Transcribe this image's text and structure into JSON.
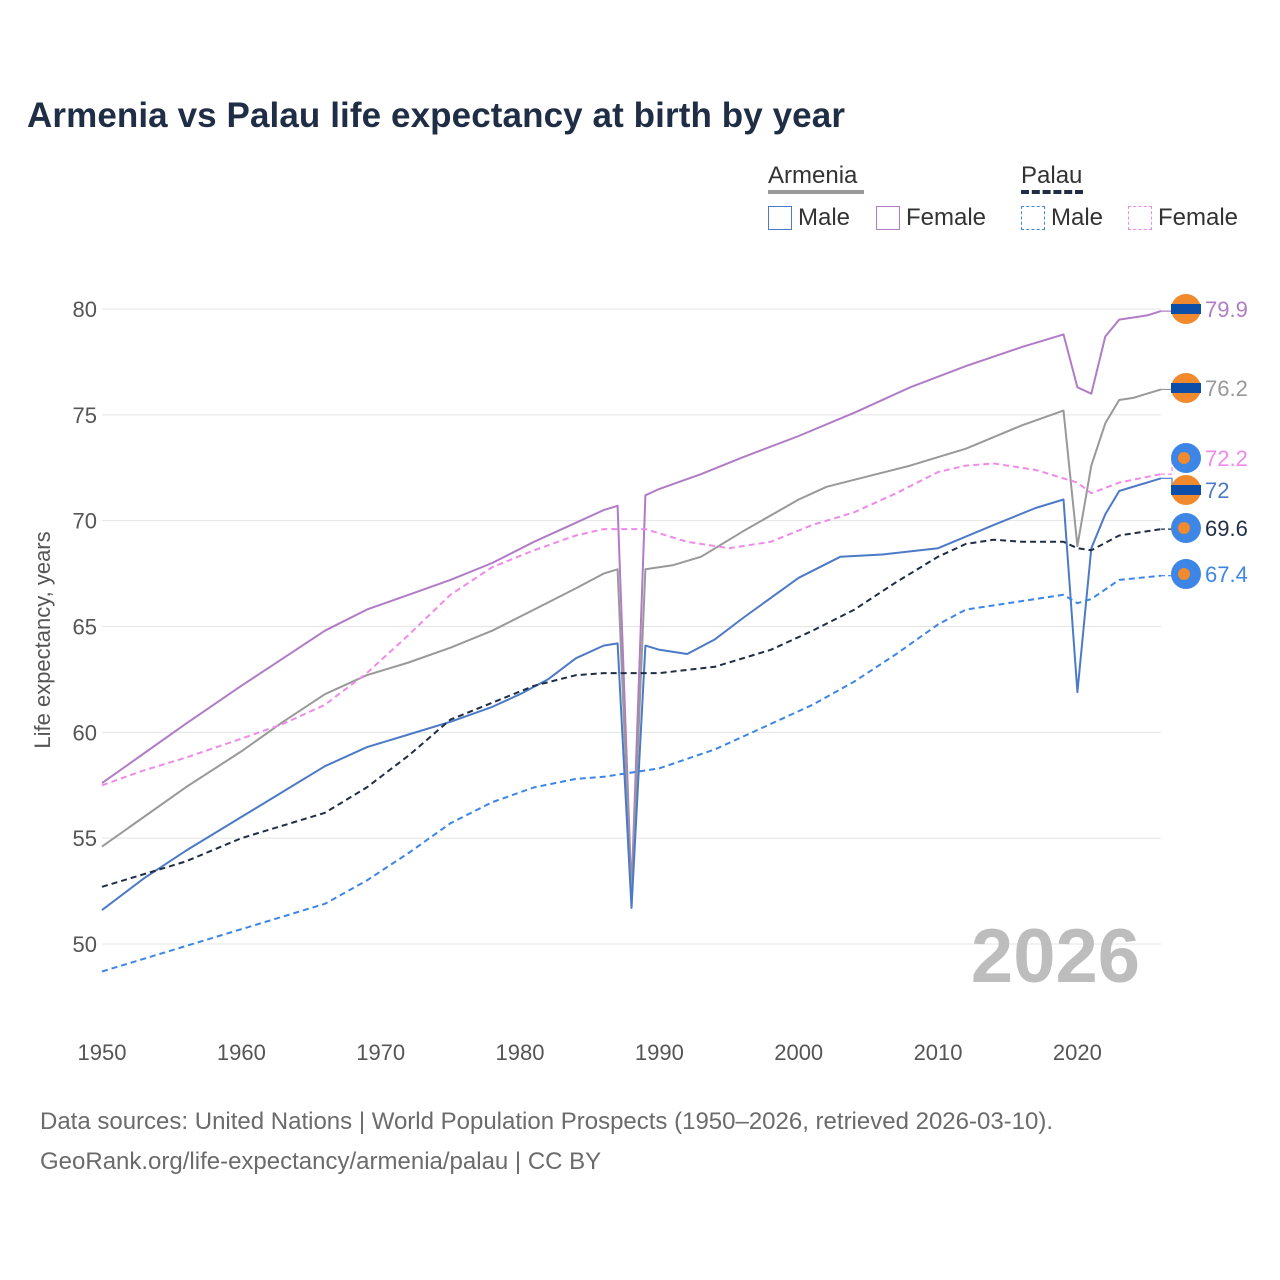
{
  "title": "Armenia vs Palau life expectancy at birth by year",
  "legend": {
    "groups": [
      {
        "name": "Armenia",
        "line_color": "#999999",
        "line_style": "solid",
        "items": [
          {
            "label": "Male",
            "color": "#4c7ac6",
            "style": "solid"
          },
          {
            "label": "Female",
            "color": "#b07cc6",
            "style": "solid"
          }
        ]
      },
      {
        "name": "Palau",
        "line_color": "#1f2d45",
        "line_style": "dashed",
        "items": [
          {
            "label": "Male",
            "color": "#3d86e6",
            "style": "dashed"
          },
          {
            "label": "Female",
            "color": "#f08ae8",
            "style": "dashed"
          }
        ]
      }
    ]
  },
  "year_watermark": "2026",
  "footer": {
    "line1": "Data sources: United Nations | World Population Prospects (1950–2026, retrieved 2026-03-10).",
    "line2": "GeoRank.org/life-expectancy/armenia/palau | CC BY"
  },
  "chart_data": {
    "type": "line",
    "title": "Armenia vs Palau life expectancy at birth by year",
    "xlabel": "",
    "ylabel": "Life expectancy, years",
    "xlim": [
      1950,
      2026
    ],
    "ylim": [
      47,
      82
    ],
    "x_ticks": [
      1950,
      1960,
      1970,
      1980,
      1990,
      2000,
      2010,
      2020
    ],
    "y_ticks": [
      50,
      55,
      60,
      65,
      70,
      75,
      80
    ],
    "grid": true,
    "series": [
      {
        "name": "Armenia Female",
        "color": "#b07cc6",
        "style": "solid",
        "end_label": "79.9",
        "points": [
          [
            1950,
            57.6
          ],
          [
            1953,
            59.0
          ],
          [
            1956,
            60.4
          ],
          [
            1960,
            62.2
          ],
          [
            1963,
            63.5
          ],
          [
            1966,
            64.8
          ],
          [
            1969,
            65.8
          ],
          [
            1972,
            66.5
          ],
          [
            1975,
            67.2
          ],
          [
            1978,
            68.0
          ],
          [
            1981,
            69.0
          ],
          [
            1984,
            69.9
          ],
          [
            1986,
            70.5
          ],
          [
            1987,
            70.7
          ],
          [
            1988,
            52.5
          ],
          [
            1989,
            71.2
          ],
          [
            1990,
            71.5
          ],
          [
            1993,
            72.2
          ],
          [
            1996,
            73.0
          ],
          [
            2000,
            74.0
          ],
          [
            2004,
            75.1
          ],
          [
            2008,
            76.3
          ],
          [
            2012,
            77.3
          ],
          [
            2016,
            78.2
          ],
          [
            2019,
            78.8
          ],
          [
            2020,
            76.3
          ],
          [
            2021,
            76.0
          ],
          [
            2022,
            78.7
          ],
          [
            2023,
            79.5
          ],
          [
            2025,
            79.7
          ],
          [
            2026,
            79.9
          ]
        ]
      },
      {
        "name": "Armenia Total",
        "color": "#999999",
        "style": "solid",
        "end_label": "76.2",
        "points": [
          [
            1950,
            54.6
          ],
          [
            1953,
            56.0
          ],
          [
            1956,
            57.4
          ],
          [
            1960,
            59.1
          ],
          [
            1963,
            60.5
          ],
          [
            1966,
            61.8
          ],
          [
            1969,
            62.7
          ],
          [
            1972,
            63.3
          ],
          [
            1975,
            64.0
          ],
          [
            1978,
            64.8
          ],
          [
            1981,
            65.8
          ],
          [
            1984,
            66.8
          ],
          [
            1986,
            67.5
          ],
          [
            1987,
            67.7
          ],
          [
            1988,
            52.1
          ],
          [
            1989,
            67.7
          ],
          [
            1991,
            67.9
          ],
          [
            1993,
            68.3
          ],
          [
            1996,
            69.5
          ],
          [
            2000,
            71.0
          ],
          [
            2002,
            71.6
          ],
          [
            2005,
            72.1
          ],
          [
            2008,
            72.6
          ],
          [
            2012,
            73.4
          ],
          [
            2016,
            74.5
          ],
          [
            2019,
            75.2
          ],
          [
            2020,
            68.8
          ],
          [
            2021,
            72.6
          ],
          [
            2022,
            74.6
          ],
          [
            2023,
            75.7
          ],
          [
            2024,
            75.8
          ],
          [
            2026,
            76.2
          ]
        ]
      },
      {
        "name": "Armenia Male",
        "color": "#4c7ac6",
        "style": "solid",
        "end_label": "72",
        "points": [
          [
            1950,
            51.6
          ],
          [
            1953,
            53.1
          ],
          [
            1956,
            54.4
          ],
          [
            1960,
            56.0
          ],
          [
            1963,
            57.2
          ],
          [
            1966,
            58.4
          ],
          [
            1969,
            59.3
          ],
          [
            1972,
            59.9
          ],
          [
            1975,
            60.5
          ],
          [
            1978,
            61.2
          ],
          [
            1980,
            61.8
          ],
          [
            1982,
            62.5
          ],
          [
            1984,
            63.5
          ],
          [
            1986,
            64.1
          ],
          [
            1987,
            64.2
          ],
          [
            1988,
            51.7
          ],
          [
            1989,
            64.1
          ],
          [
            1990,
            63.9
          ],
          [
            1992,
            63.7
          ],
          [
            1994,
            64.4
          ],
          [
            1996,
            65.4
          ],
          [
            2000,
            67.3
          ],
          [
            2003,
            68.3
          ],
          [
            2006,
            68.4
          ],
          [
            2010,
            68.7
          ],
          [
            2014,
            69.8
          ],
          [
            2017,
            70.6
          ],
          [
            2019,
            71.0
          ],
          [
            2020,
            61.9
          ],
          [
            2021,
            68.7
          ],
          [
            2022,
            70.3
          ],
          [
            2023,
            71.4
          ],
          [
            2026,
            72.0
          ]
        ]
      },
      {
        "name": "Palau Female",
        "color": "#f08ae8",
        "style": "dashed",
        "end_label": "72.2",
        "points": [
          [
            1950,
            57.5
          ],
          [
            1953,
            58.2
          ],
          [
            1956,
            58.8
          ],
          [
            1960,
            59.7
          ],
          [
            1963,
            60.4
          ],
          [
            1966,
            61.3
          ],
          [
            1969,
            62.8
          ],
          [
            1972,
            64.6
          ],
          [
            1975,
            66.5
          ],
          [
            1978,
            67.8
          ],
          [
            1981,
            68.6
          ],
          [
            1984,
            69.3
          ],
          [
            1986,
            69.6
          ],
          [
            1989,
            69.6
          ],
          [
            1992,
            69.0
          ],
          [
            1995,
            68.7
          ],
          [
            1998,
            69.0
          ],
          [
            2001,
            69.8
          ],
          [
            2004,
            70.4
          ],
          [
            2007,
            71.3
          ],
          [
            2010,
            72.3
          ],
          [
            2012,
            72.6
          ],
          [
            2014,
            72.7
          ],
          [
            2017,
            72.4
          ],
          [
            2020,
            71.8
          ],
          [
            2021,
            71.3
          ],
          [
            2023,
            71.8
          ],
          [
            2026,
            72.2
          ]
        ]
      },
      {
        "name": "Palau Total",
        "color": "#1f2d45",
        "style": "dashed",
        "end_label": "69.6",
        "points": [
          [
            1950,
            52.7
          ],
          [
            1953,
            53.3
          ],
          [
            1956,
            53.9
          ],
          [
            1960,
            55.0
          ],
          [
            1963,
            55.6
          ],
          [
            1966,
            56.2
          ],
          [
            1969,
            57.4
          ],
          [
            1972,
            58.9
          ],
          [
            1975,
            60.6
          ],
          [
            1978,
            61.4
          ],
          [
            1981,
            62.2
          ],
          [
            1984,
            62.7
          ],
          [
            1986,
            62.8
          ],
          [
            1990,
            62.8
          ],
          [
            1994,
            63.1
          ],
          [
            1998,
            63.9
          ],
          [
            2001,
            64.8
          ],
          [
            2004,
            65.8
          ],
          [
            2007,
            67.1
          ],
          [
            2010,
            68.3
          ],
          [
            2012,
            68.9
          ],
          [
            2014,
            69.1
          ],
          [
            2016,
            69.0
          ],
          [
            2019,
            69.0
          ],
          [
            2020,
            68.7
          ],
          [
            2021,
            68.6
          ],
          [
            2023,
            69.3
          ],
          [
            2026,
            69.6
          ]
        ]
      },
      {
        "name": "Palau Male",
        "color": "#3d86e6",
        "style": "dashed",
        "end_label": "67.4",
        "points": [
          [
            1950,
            48.7
          ],
          [
            1953,
            49.3
          ],
          [
            1956,
            49.9
          ],
          [
            1960,
            50.7
          ],
          [
            1963,
            51.3
          ],
          [
            1966,
            51.9
          ],
          [
            1969,
            53.0
          ],
          [
            1972,
            54.3
          ],
          [
            1975,
            55.7
          ],
          [
            1978,
            56.7
          ],
          [
            1981,
            57.4
          ],
          [
            1984,
            57.8
          ],
          [
            1986,
            57.9
          ],
          [
            1990,
            58.3
          ],
          [
            1994,
            59.2
          ],
          [
            1998,
            60.4
          ],
          [
            2001,
            61.3
          ],
          [
            2004,
            62.4
          ],
          [
            2007,
            63.7
          ],
          [
            2010,
            65.1
          ],
          [
            2012,
            65.8
          ],
          [
            2016,
            66.2
          ],
          [
            2019,
            66.5
          ],
          [
            2020,
            66.1
          ],
          [
            2021,
            66.3
          ],
          [
            2023,
            67.2
          ],
          [
            2026,
            67.4
          ]
        ]
      }
    ]
  }
}
